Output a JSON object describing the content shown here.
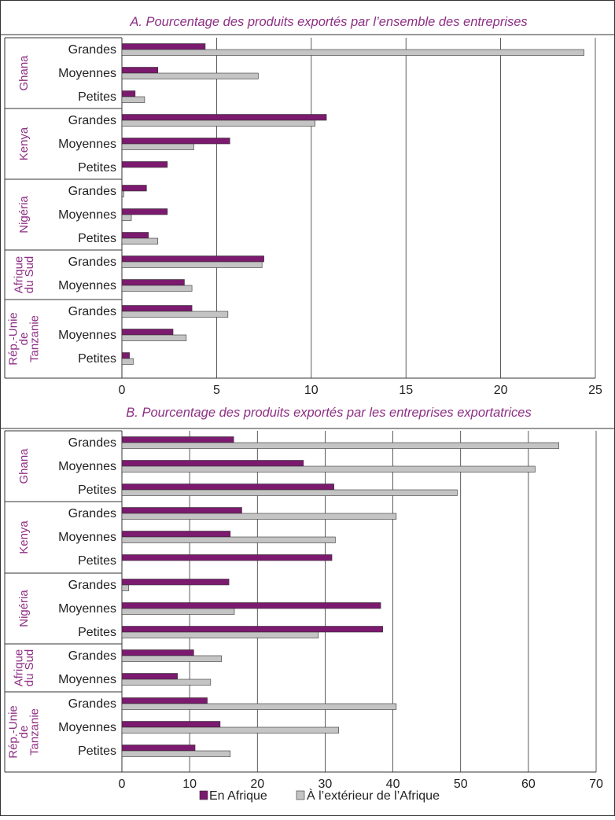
{
  "colors": {
    "en_afrique": "#7b1a6e",
    "exterieur": "#c4c4c4",
    "title": "#8d2f84",
    "country": "#8d2f84",
    "text": "#222222",
    "frame": "#333333"
  },
  "legend": {
    "en_afrique": "En Afrique",
    "exterieur": "À l’extérieur de l’Afrique"
  },
  "chart_data": [
    {
      "type": "bar",
      "orientation": "horizontal",
      "title": "A. Pourcentage des produits exportés par l’ensemble des entreprises",
      "xlim": [
        0,
        25
      ],
      "xticks": [
        "0",
        "5",
        "10",
        "15",
        "20",
        "25"
      ],
      "grid": true,
      "legend": "bottom",
      "groups": [
        {
          "country": "Ghana",
          "categories": [
            "Grandes",
            "Moyennes",
            "Petites"
          ]
        },
        {
          "country": "Kenya",
          "categories": [
            "Grandes",
            "Moyennes",
            "Petites"
          ]
        },
        {
          "country": "Nigéria",
          "categories": [
            "Grandes",
            "Moyennes",
            "Petites"
          ]
        },
        {
          "country": "Afrique du Sud",
          "categories": [
            "Grandes",
            "Moyennes"
          ]
        },
        {
          "country": "Rép.-Unie de Tanzanie",
          "categories": [
            "Grandes",
            "Moyennes",
            "Petites"
          ]
        }
      ],
      "series": [
        {
          "name": "En Afrique",
          "values": [
            4.4,
            1.9,
            0.7,
            10.8,
            5.7,
            2.4,
            1.3,
            2.4,
            1.4,
            7.5,
            3.3,
            3.7,
            2.7,
            0.4
          ]
        },
        {
          "name": "À l’extérieur de l’Afrique",
          "values": [
            24.4,
            7.2,
            1.2,
            10.2,
            3.8,
            0,
            0.1,
            0.5,
            1.9,
            7.4,
            3.7,
            5.6,
            3.4,
            0.6
          ]
        }
      ]
    },
    {
      "type": "bar",
      "orientation": "horizontal",
      "title": "B. Pourcentage des produits exportés par les entreprises exportatrices",
      "xlim": [
        0,
        70
      ],
      "xticks": [
        "0",
        "10",
        "20",
        "30",
        "40",
        "50",
        "60",
        "70"
      ],
      "grid": true,
      "legend": "bottom",
      "groups": [
        {
          "country": "Ghana",
          "categories": [
            "Grandes",
            "Moyennes",
            "Petites"
          ]
        },
        {
          "country": "Kenya",
          "categories": [
            "Grandes",
            "Moyennes",
            "Petites"
          ]
        },
        {
          "country": "Nigéria",
          "categories": [
            "Grandes",
            "Moyennes",
            "Petites"
          ]
        },
        {
          "country": "Afrique du Sud",
          "categories": [
            "Grandes",
            "Moyennes"
          ]
        },
        {
          "country": "Rép.-Unie de Tanzanie",
          "categories": [
            "Grandes",
            "Moyennes",
            "Petites"
          ]
        }
      ],
      "series": [
        {
          "name": "En Afrique",
          "values": [
            16.5,
            26.8,
            31.3,
            17.7,
            16,
            31,
            15.8,
            38.2,
            38.5,
            10.6,
            8.2,
            12.6,
            14.5,
            10.8
          ]
        },
        {
          "name": "À l’extérieur de l’Afrique",
          "values": [
            64.5,
            61,
            49.5,
            40.5,
            31.5,
            0,
            1,
            16.6,
            29,
            14.7,
            13.1,
            40.5,
            32,
            16
          ]
        }
      ]
    }
  ]
}
